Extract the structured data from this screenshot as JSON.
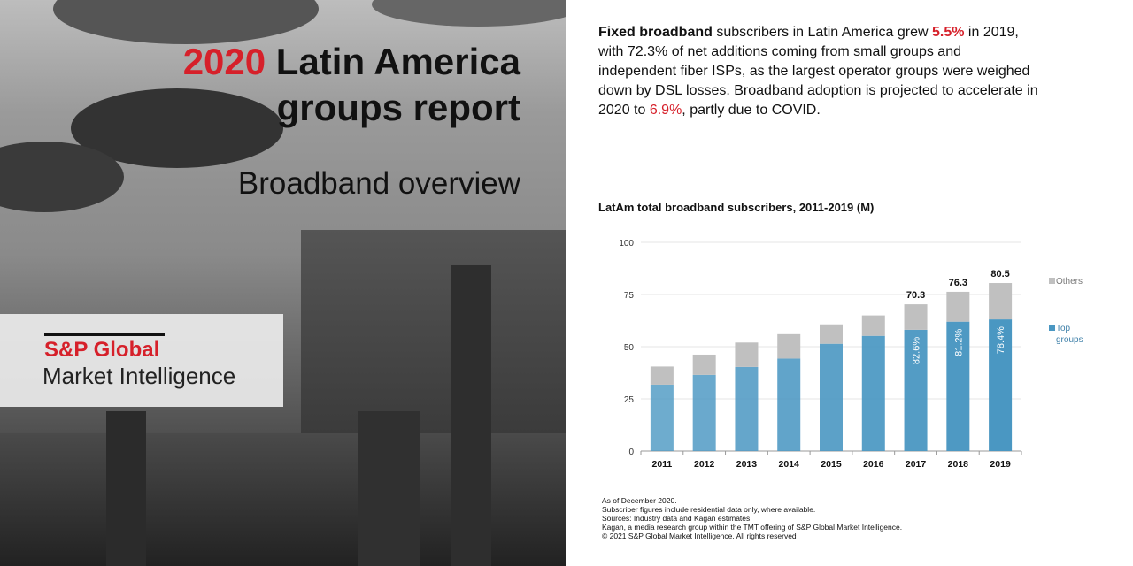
{
  "header": {
    "title_year": "2020",
    "title_line1_rest": " Latin America",
    "title_line2": "groups report",
    "subtitle": "Broadband overview"
  },
  "logo": {
    "line1": "S&P Global",
    "line2": "Market Intelligence"
  },
  "intro": {
    "p1": "Fixed broadband",
    "p2": " subscribers in Latin America grew ",
    "p3": "5.5%",
    "p4": " in 2019, with 72.3% of net additions coming from small groups and independent fiber ISPs, as the largest operator groups were weighed down by DSL losses. Broadband adoption is projected to accelerate in 2020 to ",
    "p5": "6.9%",
    "p6": ", partly due to COVID."
  },
  "colors": {
    "accent": "#d6202a",
    "top_groups": "#4a97c2",
    "others": "#c0c0c0"
  },
  "chart_data": {
    "type": "bar",
    "stacked": true,
    "title": "LatAm total broadband subscribers, 2011-2019 (M)",
    "categories": [
      "2011",
      "2012",
      "2013",
      "2014",
      "2015",
      "2016",
      "2017",
      "2018",
      "2019"
    ],
    "series": [
      {
        "name": "Top groups",
        "values": [
          31.8,
          36.5,
          40.3,
          44.3,
          51.4,
          55.2,
          58.1,
          62.0,
          63.1
        ]
      },
      {
        "name": "Others",
        "values": [
          8.7,
          9.7,
          11.7,
          11.7,
          9.3,
          9.8,
          12.2,
          14.3,
          17.4
        ]
      }
    ],
    "total_labels": {
      "2017": "70.3",
      "2018": "76.3",
      "2019": "80.5"
    },
    "share_labels": {
      "2017": "82.6%",
      "2018": "81.2%",
      "2019": "78.4%"
    },
    "yticks": [
      "0",
      "25",
      "50",
      "75",
      "100"
    ],
    "ylim": [
      0,
      100
    ],
    "grid": true,
    "legend": "right"
  },
  "notes": [
    "As of December 2020.",
    "Subscriber figures include residential data only, where available.",
    "Sources: Industry data and Kagan estimates",
    "Kagan, a media research group within the TMT offering of S&P Global Market Intelligence.",
    "© 2021 S&P Global Market Intelligence. All rights reserved"
  ]
}
